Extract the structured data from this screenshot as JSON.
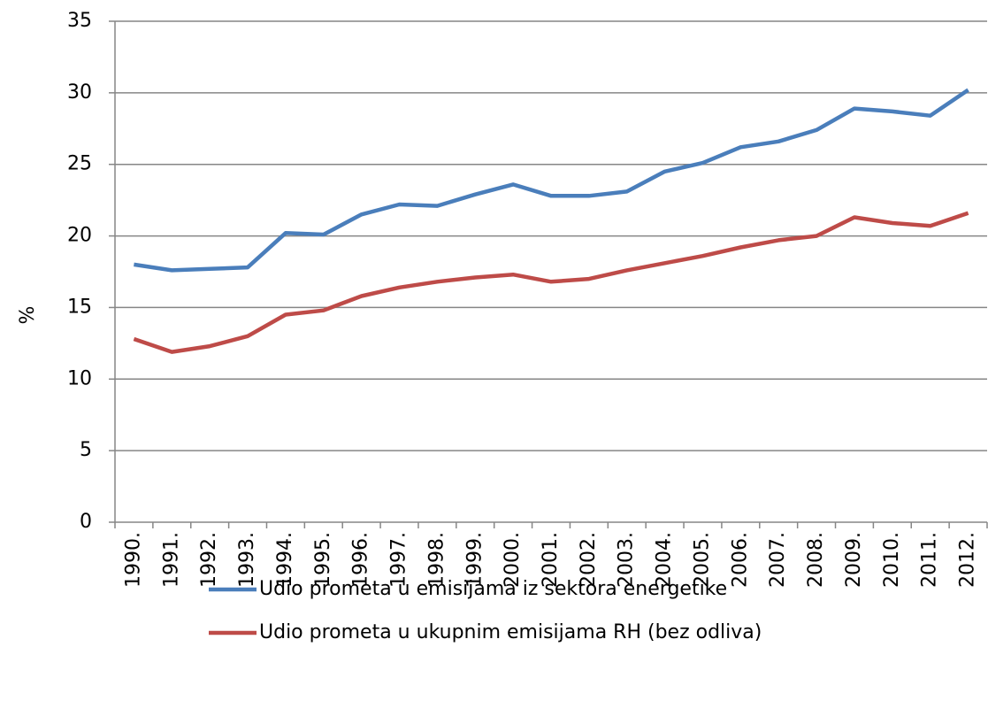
{
  "chart_data": {
    "type": "line",
    "y_label": "%",
    "categories": [
      "1990.",
      "1991.",
      "1992.",
      "1993.",
      "1994.",
      "1995.",
      "1996.",
      "1997.",
      "1998.",
      "1999.",
      "2000.",
      "2001.",
      "2002.",
      "2003.",
      "2004.",
      "2005.",
      "2006.",
      "2007.",
      "2008.",
      "2009.",
      "2010.",
      "2011.",
      "2012."
    ],
    "series": [
      {
        "name": "Udio prometa u emisijama iz sektora energetike",
        "color": "#4a7ebb",
        "values": [
          18.0,
          17.6,
          17.7,
          17.8,
          20.2,
          20.1,
          21.5,
          22.2,
          22.1,
          22.9,
          23.6,
          22.8,
          22.8,
          23.1,
          24.5,
          25.1,
          26.2,
          26.6,
          27.4,
          28.9,
          28.7,
          28.4,
          30.2
        ]
      },
      {
        "name": "Udio prometa u ukupnim emisijama RH (bez odliva)",
        "color": "#be4b48",
        "values": [
          12.8,
          11.9,
          12.3,
          13.0,
          14.5,
          14.8,
          15.8,
          16.4,
          16.8,
          17.1,
          17.3,
          16.8,
          17.0,
          17.6,
          18.1,
          18.6,
          19.2,
          19.7,
          20.0,
          21.3,
          20.9,
          20.7,
          21.6
        ]
      }
    ],
    "ylim": [
      0,
      35
    ],
    "yticks": [
      0,
      5,
      10,
      15,
      20,
      25,
      30,
      35
    ],
    "grid": true,
    "legend": "bottom"
  }
}
